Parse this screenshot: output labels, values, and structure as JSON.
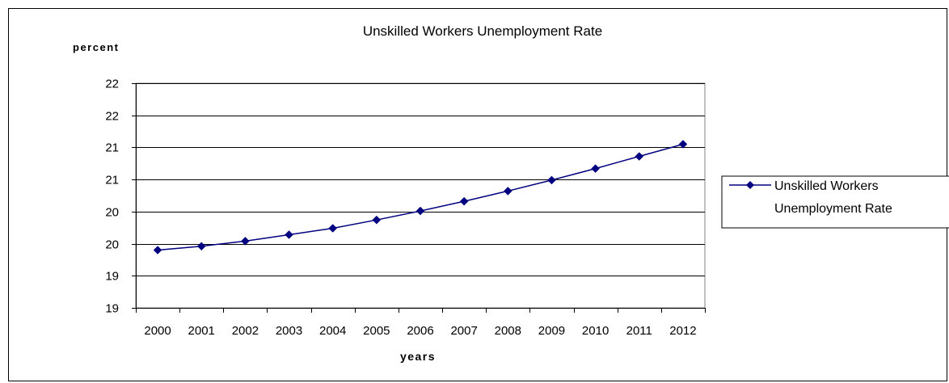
{
  "chart_data": {
    "type": "line",
    "title": "Unskilled Workers Unemployment Rate",
    "ylabel": "percent",
    "xlabel": "years",
    "categories": [
      "2000",
      "2001",
      "2002",
      "2003",
      "2004",
      "2005",
      "2006",
      "2007",
      "2008",
      "2009",
      "2010",
      "2011",
      "2012"
    ],
    "y_tick_labels": [
      "19",
      "19",
      "20",
      "20",
      "21",
      "21",
      "22",
      "22"
    ],
    "ylim": [
      19.0,
      22.5
    ],
    "ytick_step": 0.5,
    "grid": true,
    "legend_position": "right",
    "series": [
      {
        "name": "Unskilled Workers Unemployment Rate",
        "legend_lines": [
          "Unskilled Workers",
          "Unemployment Rate"
        ],
        "color": "#000080",
        "marker": "diamond",
        "values": [
          19.9,
          19.96,
          20.04,
          20.14,
          20.24,
          20.37,
          20.51,
          20.66,
          20.82,
          20.99,
          21.17,
          21.36,
          21.55
        ]
      }
    ]
  }
}
